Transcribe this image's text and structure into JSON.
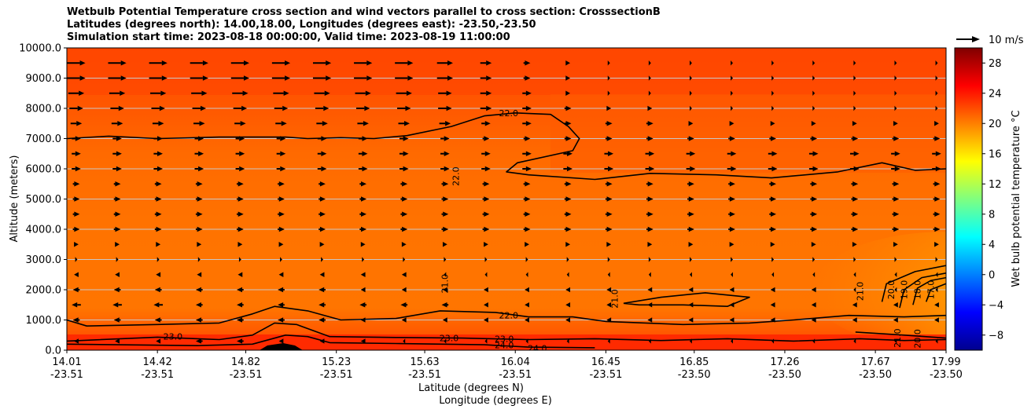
{
  "chart_data": {
    "type": "heatmap",
    "title_lines": [
      "Wetbulb Potential Temperature cross section and wind vectors parallel to cross section: CrosssectionB",
      "Latitudes (degrees north): 14.00,18.00, Longitudes (degrees east): -23.50,-23.50",
      "Simulation start time: 2023-08-18 00:00:00, Valid time: 2023-08-19 11:00:00"
    ],
    "xlabel_1": "Latitude (degrees N)",
    "xlabel_2": "Longitude (degrees E)",
    "ylabel": "Altitude (meters)",
    "x_ticks": [
      {
        "lat": "14.01",
        "lon": "-23.51"
      },
      {
        "lat": "14.42",
        "lon": "-23.51"
      },
      {
        "lat": "14.82",
        "lon": "-23.51"
      },
      {
        "lat": "15.23",
        "lon": "-23.51"
      },
      {
        "lat": "15.63",
        "lon": "-23.51"
      },
      {
        "lat": "16.04",
        "lon": "-23.51"
      },
      {
        "lat": "16.45",
        "lon": "-23.51"
      },
      {
        "lat": "16.85",
        "lon": "-23.50"
      },
      {
        "lat": "17.26",
        "lon": "-23.50"
      },
      {
        "lat": "17.67",
        "lon": "-23.50"
      },
      {
        "lat": "17.99",
        "lon": "-23.50"
      }
    ],
    "x_range": [
      14.01,
      17.99
    ],
    "y_ticks": [
      "0.0",
      "1000.0",
      "2000.0",
      "3000.0",
      "4000.0",
      "5000.0",
      "6000.0",
      "7000.0",
      "8000.0",
      "9000.0",
      "10000.0"
    ],
    "y_range": [
      0,
      10000
    ],
    "grid": "horizontal",
    "colorbar": {
      "label": "Wet bulb potential temperature $^\\circ$C",
      "label_display": "Wet bulb potential temperature °C",
      "colormap": "jet",
      "range": [
        -10,
        30
      ],
      "ticks": [
        "-8",
        "-4",
        "0",
        "4",
        "8",
        "12",
        "16",
        "20",
        "24",
        "28"
      ]
    },
    "quiver_key": "10 m/s",
    "contour_labels": [
      {
        "text": "22.0",
        "lat": 16.01,
        "alt": 7850,
        "rot": 0
      },
      {
        "text": "22.0",
        "lat": 15.77,
        "alt": 5750,
        "rot": -90
      },
      {
        "text": "21.0",
        "lat": 15.72,
        "alt": 2200,
        "rot": -90
      },
      {
        "text": "21.0",
        "lat": 16.49,
        "alt": 1700,
        "rot": -90
      },
      {
        "text": "21.0",
        "lat": 17.6,
        "alt": 1950,
        "rot": -90
      },
      {
        "text": "20.0",
        "lat": 17.74,
        "alt": 2000,
        "rot": -90
      },
      {
        "text": "19.0",
        "lat": 17.8,
        "alt": 2000,
        "rot": -90
      },
      {
        "text": "18.0",
        "lat": 17.86,
        "alt": 2000,
        "rot": -90
      },
      {
        "text": "17.0",
        "lat": 17.92,
        "alt": 2000,
        "rot": -90
      },
      {
        "text": "22.0",
        "lat": 16.01,
        "alt": 1150,
        "rot": 0
      },
      {
        "text": "23.0",
        "lat": 14.49,
        "alt": 450,
        "rot": 0
      },
      {
        "text": "23.0",
        "lat": 15.74,
        "alt": 400,
        "rot": 0
      },
      {
        "text": "23.0",
        "lat": 15.99,
        "alt": 380,
        "rot": 0
      },
      {
        "text": "24.0",
        "lat": 15.99,
        "alt": 170,
        "rot": 0
      },
      {
        "text": "24.0",
        "lat": 16.14,
        "alt": 70,
        "rot": 0
      },
      {
        "text": "21.0",
        "lat": 17.77,
        "alt": 400,
        "rot": -90
      },
      {
        "text": "20.0",
        "lat": 17.86,
        "alt": 380,
        "rot": -90
      }
    ],
    "contours": [
      {
        "level": 22,
        "points": [
          [
            14.01,
            7000
          ],
          [
            14.2,
            7080
          ],
          [
            14.42,
            7000
          ],
          [
            14.7,
            7050
          ],
          [
            15.0,
            7050
          ],
          [
            15.1,
            7000
          ],
          [
            15.25,
            7030
          ],
          [
            15.4,
            7000
          ],
          [
            15.55,
            7100
          ],
          [
            15.75,
            7400
          ],
          [
            15.9,
            7750
          ],
          [
            16.04,
            7850
          ],
          [
            16.2,
            7800
          ],
          [
            16.28,
            7400
          ],
          [
            16.33,
            7000
          ],
          [
            16.3,
            6600
          ],
          [
            16.05,
            6200
          ],
          [
            16.0,
            5900
          ],
          [
            16.1,
            5800
          ],
          [
            16.4,
            5650
          ],
          [
            16.65,
            5850
          ],
          [
            16.95,
            5800
          ],
          [
            17.2,
            5700
          ],
          [
            17.5,
            5900
          ],
          [
            17.7,
            6200
          ],
          [
            17.85,
            5950
          ],
          [
            17.99,
            6000
          ]
        ]
      },
      {
        "level": 22,
        "points": [
          [
            14.01,
            1000
          ],
          [
            14.1,
            800
          ],
          [
            14.42,
            850
          ],
          [
            14.7,
            900
          ],
          [
            14.85,
            1200
          ],
          [
            14.95,
            1450
          ],
          [
            15.1,
            1300
          ],
          [
            15.25,
            1000
          ],
          [
            15.5,
            1050
          ],
          [
            15.7,
            1300
          ],
          [
            15.95,
            1250
          ],
          [
            16.1,
            1100
          ],
          [
            16.3,
            1100
          ],
          [
            16.45,
            950
          ],
          [
            16.8,
            850
          ],
          [
            17.1,
            900
          ],
          [
            17.3,
            1000
          ],
          [
            17.55,
            1150
          ],
          [
            17.8,
            1100
          ],
          [
            17.99,
            1150
          ]
        ]
      },
      {
        "level": 21,
        "points": [
          [
            16.53,
            1550
          ],
          [
            16.7,
            1750
          ],
          [
            16.9,
            1900
          ],
          [
            17.1,
            1750
          ],
          [
            17.0,
            1450
          ],
          [
            16.8,
            1500
          ],
          [
            16.6,
            1500
          ],
          [
            16.53,
            1550
          ]
        ]
      },
      {
        "level": 23,
        "points": [
          [
            14.01,
            300
          ],
          [
            14.42,
            430
          ],
          [
            14.7,
            350
          ],
          [
            14.85,
            500
          ],
          [
            14.95,
            900
          ],
          [
            15.05,
            850
          ],
          [
            15.2,
            450
          ],
          [
            15.5,
            420
          ],
          [
            15.8,
            400
          ],
          [
            16.1,
            350
          ],
          [
            16.4,
            380
          ],
          [
            16.7,
            320
          ],
          [
            17.0,
            380
          ],
          [
            17.3,
            300
          ],
          [
            17.6,
            380
          ],
          [
            17.8,
            320
          ],
          [
            17.99,
            350
          ]
        ]
      },
      {
        "level": 24,
        "points": [
          [
            14.01,
            200
          ],
          [
            14.6,
            150
          ],
          [
            14.85,
            200
          ],
          [
            15.0,
            500
          ],
          [
            15.1,
            450
          ],
          [
            15.2,
            250
          ],
          [
            15.5,
            220
          ],
          [
            15.9,
            180
          ],
          [
            16.1,
            100
          ],
          [
            16.4,
            80
          ]
        ]
      },
      {
        "level": 21,
        "points": [
          [
            17.58,
            600
          ],
          [
            17.8,
            500
          ],
          [
            17.99,
            400
          ]
        ]
      },
      {
        "level": 20,
        "points": [
          [
            17.7,
            1600
          ],
          [
            17.72,
            2200
          ],
          [
            17.85,
            2600
          ],
          [
            17.99,
            2800
          ]
        ]
      },
      {
        "level": 19,
        "points": [
          [
            17.78,
            1400
          ],
          [
            17.8,
            2000
          ],
          [
            17.88,
            2400
          ],
          [
            17.99,
            2550
          ]
        ]
      },
      {
        "level": 18,
        "points": [
          [
            17.84,
            1500
          ],
          [
            17.86,
            2050
          ],
          [
            17.92,
            2300
          ],
          [
            17.99,
            2400
          ]
        ]
      },
      {
        "level": 17,
        "points": [
          [
            17.9,
            1600
          ],
          [
            17.92,
            2000
          ],
          [
            17.99,
            2200
          ]
        ]
      }
    ],
    "wind_rows": [
      {
        "alt": 300,
        "u": [
          -2,
          -2,
          -2,
          -3,
          -3,
          -2,
          -2,
          -2,
          -1,
          -1,
          -1,
          -1,
          -1,
          -1,
          -1,
          -1,
          -1,
          -1,
          -1,
          -1,
          -1,
          -1
        ]
      },
      {
        "alt": 1000,
        "u": [
          -3,
          -3,
          -3,
          -3,
          -3,
          -3,
          -3,
          -2,
          -2,
          -2,
          -2,
          -2,
          -2,
          -2,
          -2,
          -2,
          -2,
          -2,
          -2,
          -2,
          -2,
          -2
        ]
      },
      {
        "alt": 1500,
        "u": [
          -4,
          -4,
          -4,
          -3,
          -3,
          -3,
          -3,
          -3,
          -3,
          -3,
          -2,
          -2,
          -2,
          -2,
          -2,
          -2,
          -2,
          -2,
          -2,
          -2,
          -2,
          -2
        ]
      },
      {
        "alt": 2000,
        "u": [
          -3,
          -3,
          -3,
          -3,
          -3,
          -3,
          -3,
          -2,
          -2,
          -2,
          -2,
          -2,
          -2,
          -2,
          -2,
          -2,
          -2,
          -2,
          -2,
          -1,
          -1,
          -1
        ]
      },
      {
        "alt": 2500,
        "u": [
          -2,
          -2,
          -2,
          -2,
          -2,
          -2,
          -2,
          -2,
          -2,
          -1,
          -1,
          -1,
          -1,
          -1,
          -1,
          -1,
          -1,
          -1,
          -1,
          -1,
          -1,
          -1
        ]
      },
      {
        "alt": 3000,
        "u": [
          1,
          1,
          1,
          1,
          1,
          1,
          1,
          1,
          1,
          1,
          1,
          1,
          1,
          1,
          1,
          1,
          1,
          1,
          1,
          1,
          1,
          1
        ]
      },
      {
        "alt": 3500,
        "u": [
          2,
          2,
          2,
          2,
          2,
          2,
          2,
          2,
          2,
          2,
          2,
          2,
          2,
          2,
          2,
          2,
          2,
          2,
          2,
          2,
          2,
          2
        ]
      },
      {
        "alt": 4000,
        "u": [
          3,
          3,
          3,
          3,
          3,
          3,
          3,
          3,
          3,
          3,
          3,
          3,
          3,
          3,
          3,
          3,
          3,
          3,
          3,
          3,
          3,
          3
        ]
      },
      {
        "alt": 4500,
        "u": [
          3,
          3,
          3,
          3,
          3,
          3,
          3,
          3,
          3,
          3,
          3,
          3,
          3,
          3,
          3,
          3,
          3,
          3,
          3,
          3,
          3,
          3
        ]
      },
      {
        "alt": 5000,
        "u": [
          3,
          3,
          3,
          3,
          3,
          3,
          3,
          3,
          3,
          3,
          3,
          3,
          3,
          3,
          3,
          3,
          3,
          3,
          3,
          3,
          3,
          3
        ]
      },
      {
        "alt": 5500,
        "u": [
          3,
          3,
          3,
          3,
          3,
          3,
          3,
          3,
          3,
          3,
          3,
          3,
          3,
          3,
          3,
          3,
          3,
          3,
          3,
          3,
          3,
          3
        ]
      },
      {
        "alt": 6000,
        "u": [
          4,
          4,
          4,
          4,
          4,
          4,
          4,
          4,
          4,
          4,
          4,
          4,
          4,
          4,
          4,
          4,
          4,
          4,
          4,
          4,
          4,
          4
        ]
      },
      {
        "alt": 6500,
        "u": [
          4,
          4,
          4,
          4,
          4,
          4,
          4,
          4,
          4,
          4,
          4,
          4,
          4,
          4,
          4,
          4,
          4,
          4,
          4,
          4,
          4,
          4
        ]
      },
      {
        "alt": 7000,
        "u": [
          4,
          4,
          4,
          4,
          4,
          4,
          4,
          4,
          4,
          4,
          3,
          3,
          3,
          3,
          3,
          3,
          3,
          3,
          3,
          3,
          3,
          3
        ]
      },
      {
        "alt": 7500,
        "u": [
          5,
          5,
          5,
          5,
          5,
          5,
          5,
          5,
          5,
          5,
          4,
          4,
          3,
          3,
          3,
          2,
          2,
          2,
          2,
          2,
          2,
          2
        ]
      },
      {
        "alt": 8000,
        "u": [
          6,
          6,
          6,
          6,
          6,
          6,
          6,
          6,
          6,
          6,
          5,
          4,
          3,
          2,
          2,
          1,
          1,
          1,
          1,
          1,
          1,
          1
        ]
      },
      {
        "alt": 8500,
        "u": [
          7,
          7,
          7,
          7,
          7,
          7,
          7,
          7,
          7,
          6,
          5,
          4,
          2,
          1,
          1,
          1,
          1,
          1,
          1,
          1,
          1,
          1
        ]
      },
      {
        "alt": 9000,
        "u": [
          8,
          8,
          8,
          8,
          8,
          8,
          8,
          8,
          8,
          7,
          5,
          3,
          2,
          1,
          1,
          1,
          1,
          1,
          1,
          1,
          1,
          1
        ]
      },
      {
        "alt": 9500,
        "u": [
          8,
          8,
          8,
          8,
          8,
          8,
          8,
          8,
          8,
          7,
          5,
          3,
          2,
          1,
          1,
          1,
          1,
          1,
          1,
          1,
          1,
          1
        ]
      }
    ]
  }
}
